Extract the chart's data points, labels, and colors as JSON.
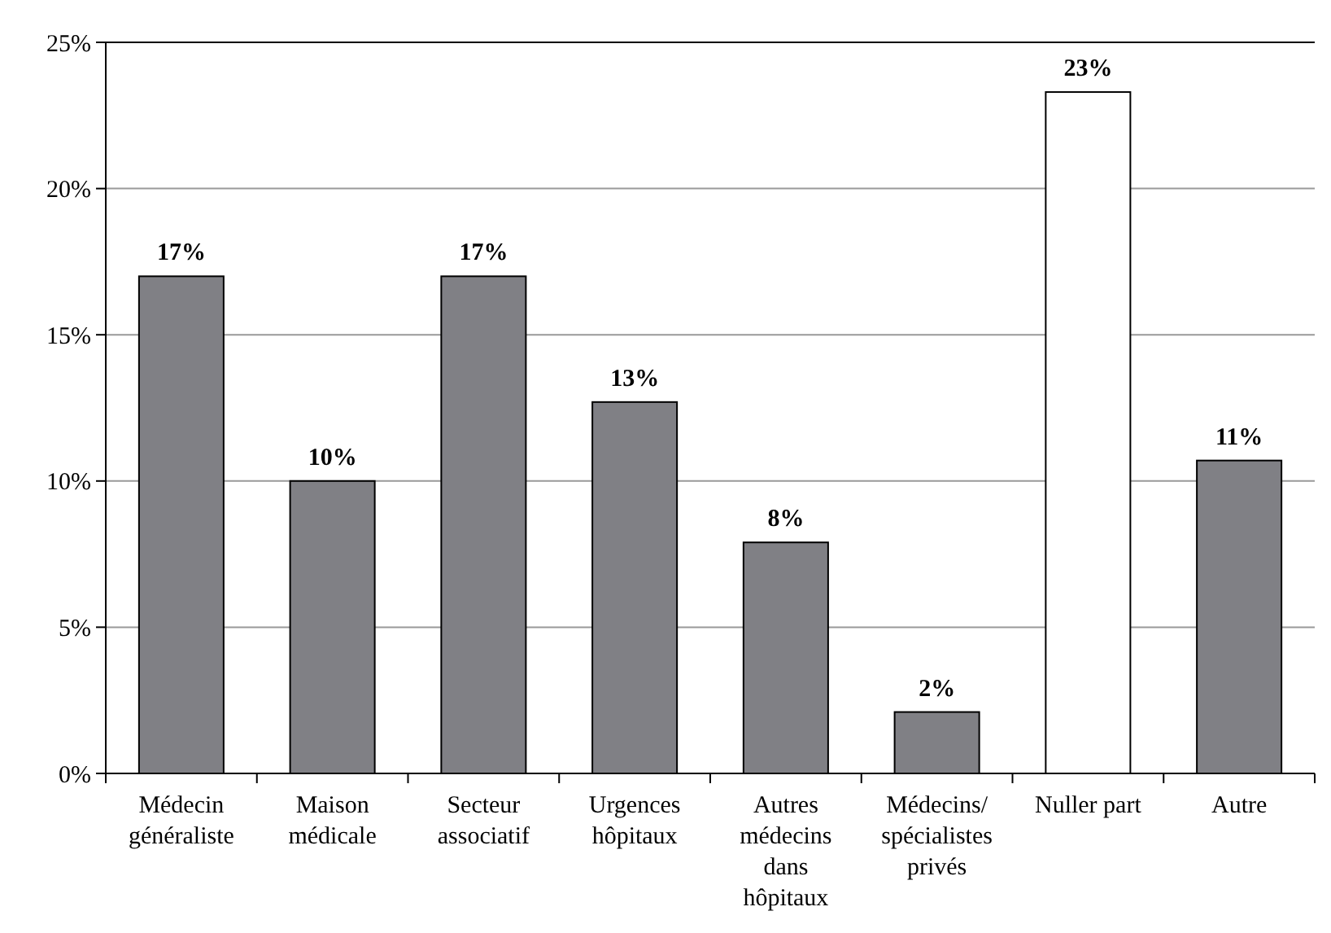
{
  "chart_data": {
    "type": "bar",
    "categories": [
      "Médecin généraliste",
      "Maison médicale",
      "Secteur associatif",
      "Urgences hôpitaux",
      "Autres médecins dans hôpitaux",
      "Médecins/ spécialistes privés",
      "Nuller part",
      "Autre"
    ],
    "values": [
      17,
      10,
      17,
      12.7,
      7.9,
      2.1,
      23.3,
      10.7
    ],
    "colors": [
      "#808085",
      "#808085",
      "#808085",
      "#808085",
      "#808085",
      "#808085",
      "#ffffff",
      "#808085"
    ],
    "value_labels": [
      "17%",
      "10%",
      "17%",
      "13%",
      "8%",
      "2%",
      "23%",
      "11%"
    ],
    "ylim": [
      0,
      25
    ],
    "yticks": [
      {
        "value": 0,
        "label": "0%"
      },
      {
        "value": 5,
        "label": "5%"
      },
      {
        "value": 10,
        "label": "10%"
      },
      {
        "value": 15,
        "label": "15%"
      },
      {
        "value": 20,
        "label": "20%"
      },
      {
        "value": 25,
        "label": "25%"
      }
    ],
    "grid": "y"
  }
}
